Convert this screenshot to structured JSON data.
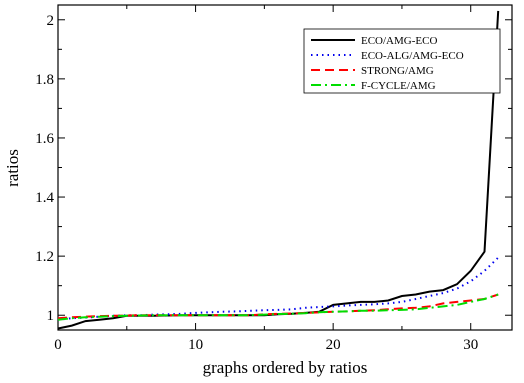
{
  "chart_data": {
    "type": "line",
    "title": "",
    "xlabel": "graphs ordered by ratios",
    "ylabel": "ratios",
    "xlim": [
      0,
      33
    ],
    "ylim": [
      0.95,
      2.05
    ],
    "xticks": [
      0,
      10,
      20,
      30
    ],
    "yticks": [
      1,
      1.2,
      1.4,
      1.6,
      1.8,
      2
    ],
    "ytick_labels": [
      "1",
      "1.2",
      "1.4",
      "1.6",
      "1.8",
      "2"
    ],
    "grid": false,
    "legend_position": "top-right",
    "series": [
      {
        "name": "ECO/AMG-ECO",
        "color": "#000000",
        "dash": "solid",
        "x": [
          0,
          1,
          2,
          3,
          4,
          5,
          6,
          7,
          8,
          9,
          10,
          11,
          12,
          13,
          14,
          15,
          16,
          17,
          18,
          19,
          20,
          21,
          22,
          23,
          24,
          25,
          26,
          27,
          28,
          29,
          30,
          31,
          32
        ],
        "y": [
          0.955,
          0.965,
          0.98,
          0.985,
          0.99,
          0.998,
          0.998,
          0.998,
          0.999,
          1.0,
          1.0,
          1.0,
          1.0,
          1.0,
          1.0,
          1.0,
          1.003,
          1.005,
          1.008,
          1.012,
          1.035,
          1.04,
          1.045,
          1.045,
          1.05,
          1.065,
          1.07,
          1.08,
          1.085,
          1.105,
          1.15,
          1.215,
          2.03
        ]
      },
      {
        "name": "ECO-ALG/AMG-ECO",
        "color": "#0000ee",
        "dash": "dotted",
        "x": [
          0,
          1,
          2,
          3,
          4,
          5,
          6,
          7,
          8,
          9,
          10,
          11,
          12,
          13,
          14,
          15,
          16,
          17,
          18,
          19,
          20,
          21,
          22,
          23,
          24,
          25,
          26,
          27,
          28,
          29,
          30,
          31,
          32
        ],
        "y": [
          0.985,
          0.99,
          0.992,
          0.995,
          0.998,
          1.0,
          1.0,
          1.002,
          1.003,
          1.005,
          1.008,
          1.01,
          1.012,
          1.013,
          1.015,
          1.017,
          1.018,
          1.02,
          1.025,
          1.028,
          1.03,
          1.033,
          1.035,
          1.037,
          1.04,
          1.045,
          1.055,
          1.065,
          1.075,
          1.09,
          1.115,
          1.15,
          1.195
        ]
      },
      {
        "name": "STRONG/AMG",
        "color": "#ff0000",
        "dash": "dashed",
        "x": [
          0,
          1,
          2,
          3,
          4,
          5,
          6,
          7,
          8,
          9,
          10,
          11,
          12,
          13,
          14,
          15,
          16,
          17,
          18,
          19,
          20,
          21,
          22,
          23,
          24,
          25,
          26,
          27,
          28,
          29,
          30,
          31,
          32
        ],
        "y": [
          0.99,
          0.993,
          0.995,
          0.997,
          0.998,
          0.999,
          1.0,
          1.0,
          1.0,
          1.0,
          1.0,
          1.0,
          1.0,
          1.0,
          1.0,
          1.003,
          1.005,
          1.006,
          1.008,
          1.01,
          1.012,
          1.013,
          1.015,
          1.017,
          1.02,
          1.023,
          1.025,
          1.03,
          1.04,
          1.045,
          1.05,
          1.055,
          1.07
        ]
      },
      {
        "name": "F-CYCLE/AMG",
        "color": "#00dd00",
        "dash": "dashdot",
        "x": [
          0,
          1,
          2,
          3,
          4,
          5,
          6,
          7,
          8,
          9,
          10,
          11,
          12,
          13,
          14,
          15,
          16,
          17,
          18,
          19,
          20,
          21,
          22,
          23,
          24,
          25,
          26,
          27,
          28,
          29,
          30,
          31,
          32
        ],
        "y": [
          0.985,
          0.99,
          0.993,
          0.995,
          0.997,
          0.998,
          0.999,
          1.0,
          1.0,
          1.0,
          1.0,
          1.0,
          1.0,
          1.0,
          1.0,
          1.002,
          1.004,
          1.005,
          1.007,
          1.01,
          1.012,
          1.013,
          1.015,
          1.015,
          1.017,
          1.018,
          1.02,
          1.025,
          1.03,
          1.035,
          1.045,
          1.055,
          1.07
        ]
      }
    ]
  }
}
